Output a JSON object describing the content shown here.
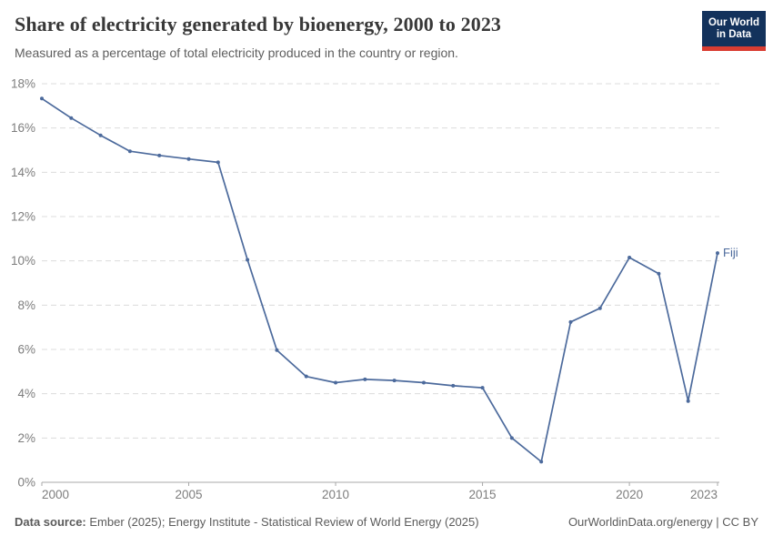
{
  "header": {
    "title": "Share of electricity generated by bioenergy, 2000 to 2023",
    "subtitle": "Measured as a percentage of total electricity produced in the country or region.",
    "logo": {
      "line1": "Our World",
      "line2": "in Data"
    }
  },
  "chart_data": {
    "type": "line",
    "title": "Share of electricity generated by bioenergy, 2000 to 2023",
    "xlabel": "",
    "ylabel": "",
    "x": [
      2000,
      2001,
      2002,
      2003,
      2004,
      2005,
      2006,
      2007,
      2008,
      2009,
      2010,
      2011,
      2012,
      2013,
      2014,
      2015,
      2016,
      2017,
      2018,
      2019,
      2020,
      2021,
      2022,
      2023
    ],
    "series": [
      {
        "name": "Fiji",
        "color": "#4C6A9C",
        "values": [
          17.33,
          16.45,
          15.67,
          14.95,
          14.76,
          14.6,
          14.45,
          10.05,
          5.97,
          4.78,
          4.5,
          4.65,
          4.6,
          4.5,
          4.36,
          4.27,
          2.0,
          0.93,
          7.24,
          7.86,
          10.15,
          9.42,
          3.67,
          10.35
        ]
      }
    ],
    "end_label": "Fiji",
    "xlim": [
      2000,
      2023
    ],
    "ylim": [
      0,
      18
    ],
    "yticks": [
      0,
      2,
      4,
      6,
      8,
      10,
      12,
      14,
      16,
      18
    ],
    "ytick_suffix": "%",
    "xticks": [
      2000,
      2005,
      2010,
      2015,
      2020,
      2023
    ],
    "grid": "horizontal-dashed",
    "legend_position": "end-of-line"
  },
  "footer": {
    "source_label": "Data source:",
    "source_text": " Ember (2025); Energy Institute - Statistical Review of World Energy (2025)",
    "attribution": "OurWorldinData.org/energy | CC BY"
  },
  "colors": {
    "line": "#4C6A9C",
    "grid": "#dcdcdc",
    "axis": "#a8a8a8",
    "tick_label": "#7d7d7d",
    "logo_bg": "#13325c",
    "logo_accent": "#d93d32"
  }
}
